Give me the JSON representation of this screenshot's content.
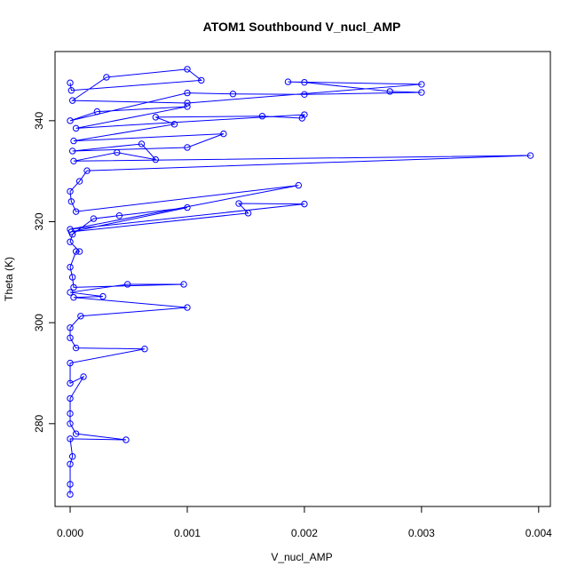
{
  "chart_data": {
    "type": "line",
    "title": "ATOM1 Southbound V_nucl_AMP",
    "x_label": "V_nucl_AMP",
    "y_label": "Theta (K)",
    "color": "#0000ff",
    "marker": "circle",
    "x": [
      0,
      0,
      0,
      2e-05,
      0,
      0.000477,
      5e-05,
      0,
      0,
      0,
      0.000114,
      0,
      0,
      0.000636,
      5e-05,
      0,
      0,
      9e-05,
      0.001,
      3e-05,
      0.00028,
      0,
      0.00049,
      0.00097,
      3e-05,
      2e-05,
      0,
      5e-05,
      8e-05,
      0,
      2e-05,
      0.0002,
      0.00042,
      0.001,
      1e-05,
      0.00152,
      0.00144,
      0.002,
      0,
      0.00195,
      5e-05,
      1e-05,
      0,
      8e-05,
      0.000144,
      0.00393,
      3e-05,
      0.0004,
      0.00073,
      0.00061,
      2e-05,
      0.001,
      0.00131,
      3e-05,
      0.00089,
      0.00073,
      0.00164,
      0.00198,
      0.002,
      5e-05,
      0.001,
      0.00023,
      0,
      0.001,
      0.00139,
      0.002,
      0.003,
      0.00273,
      0.002,
      0.00186,
      0.003,
      0.001,
      2e-05,
      0.00031,
      0.001,
      0.00112,
      1e-05,
      0
    ],
    "values": [
      266,
      268,
      272,
      273.5,
      277,
      276.8,
      278,
      280,
      282,
      285,
      289.3,
      288,
      292,
      294.8,
      295,
      297,
      299,
      301.3,
      303,
      305,
      305.2,
      306,
      307.6,
      307.6,
      307,
      309,
      311,
      314.1,
      314.1,
      316,
      317.5,
      320.6,
      321.2,
      322.8,
      318,
      321.7,
      323.6,
      323.5,
      318.5,
      327.2,
      322,
      324,
      326,
      328,
      330.1,
      333.1,
      332,
      333.7,
      332.3,
      335.4,
      334,
      334.7,
      337.4,
      336,
      339.3,
      340.7,
      340.9,
      340.5,
      341.2,
      338.5,
      342.8,
      341.8,
      340,
      345.5,
      345.3,
      345.2,
      345.6,
      345.8,
      347.6,
      347.7,
      347.2,
      343.5,
      344,
      348.6,
      350.2,
      348,
      346,
      347.5
    ],
    "xlim": [
      -0.000129,
      0.0041
    ],
    "ylim": [
      263.6,
      353.7
    ],
    "xticks": [
      {
        "value": 0,
        "label": "0.000"
      },
      {
        "value": 0.001,
        "label": "0.001"
      },
      {
        "value": 0.002,
        "label": "0.002"
      },
      {
        "value": 0.003,
        "label": "0.003"
      },
      {
        "value": 0.004,
        "label": "0.004"
      }
    ],
    "yticks": [
      280,
      300,
      320,
      340
    ]
  }
}
